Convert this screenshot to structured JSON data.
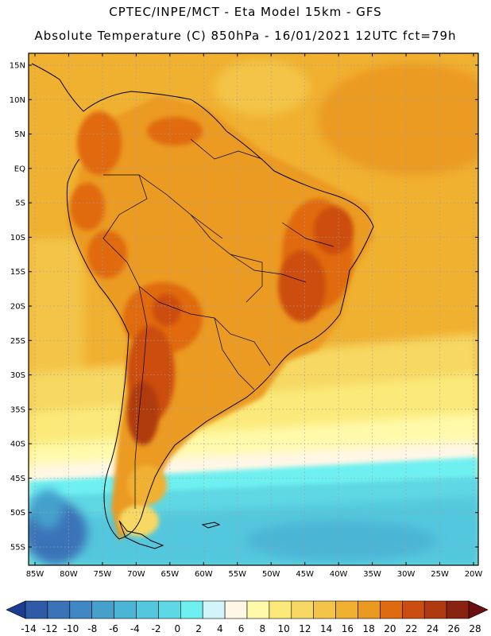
{
  "header": {
    "line1": "CPTEC/INPE/MCT -  Eta Model 15km - GFS",
    "line2": "Absolute Temperature (C) 850hPa - 16/01/2021 12UTC fct=79h"
  },
  "map": {
    "latitude_labels": [
      "15N",
      "10N",
      "5N",
      "EQ",
      "5S",
      "10S",
      "15S",
      "20S",
      "25S",
      "30S",
      "35S",
      "40S",
      "45S",
      "50S",
      "55S"
    ],
    "longitude_labels": [
      "85W",
      "80W",
      "75W",
      "70W",
      "65W",
      "60W",
      "55W",
      "50W",
      "45W",
      "40W",
      "35W",
      "30W",
      "25W",
      "20W"
    ]
  },
  "colorbar": {
    "labels": [
      "-14",
      "-12",
      "-10",
      "-8",
      "-6",
      "-4",
      "-2",
      "0",
      "2",
      "4",
      "6",
      "8",
      "10",
      "12",
      "14",
      "16",
      "18",
      "20",
      "22",
      "24",
      "26",
      "28"
    ],
    "colors": [
      "#1b3c91",
      "#2e5aa8",
      "#3a73b8",
      "#3f88c4",
      "#45a0cc",
      "#4bb5d6",
      "#52c7dd",
      "#5ed8e4",
      "#6ef0f0",
      "#d2f5fa",
      "#fff7e6",
      "#fffaaa",
      "#fbea7a",
      "#f6d862",
      "#f3c447",
      "#f0b030",
      "#eb9a20",
      "#e06a10",
      "#cc4d10",
      "#b03a10",
      "#8a2212",
      "#6a1010"
    ]
  }
}
